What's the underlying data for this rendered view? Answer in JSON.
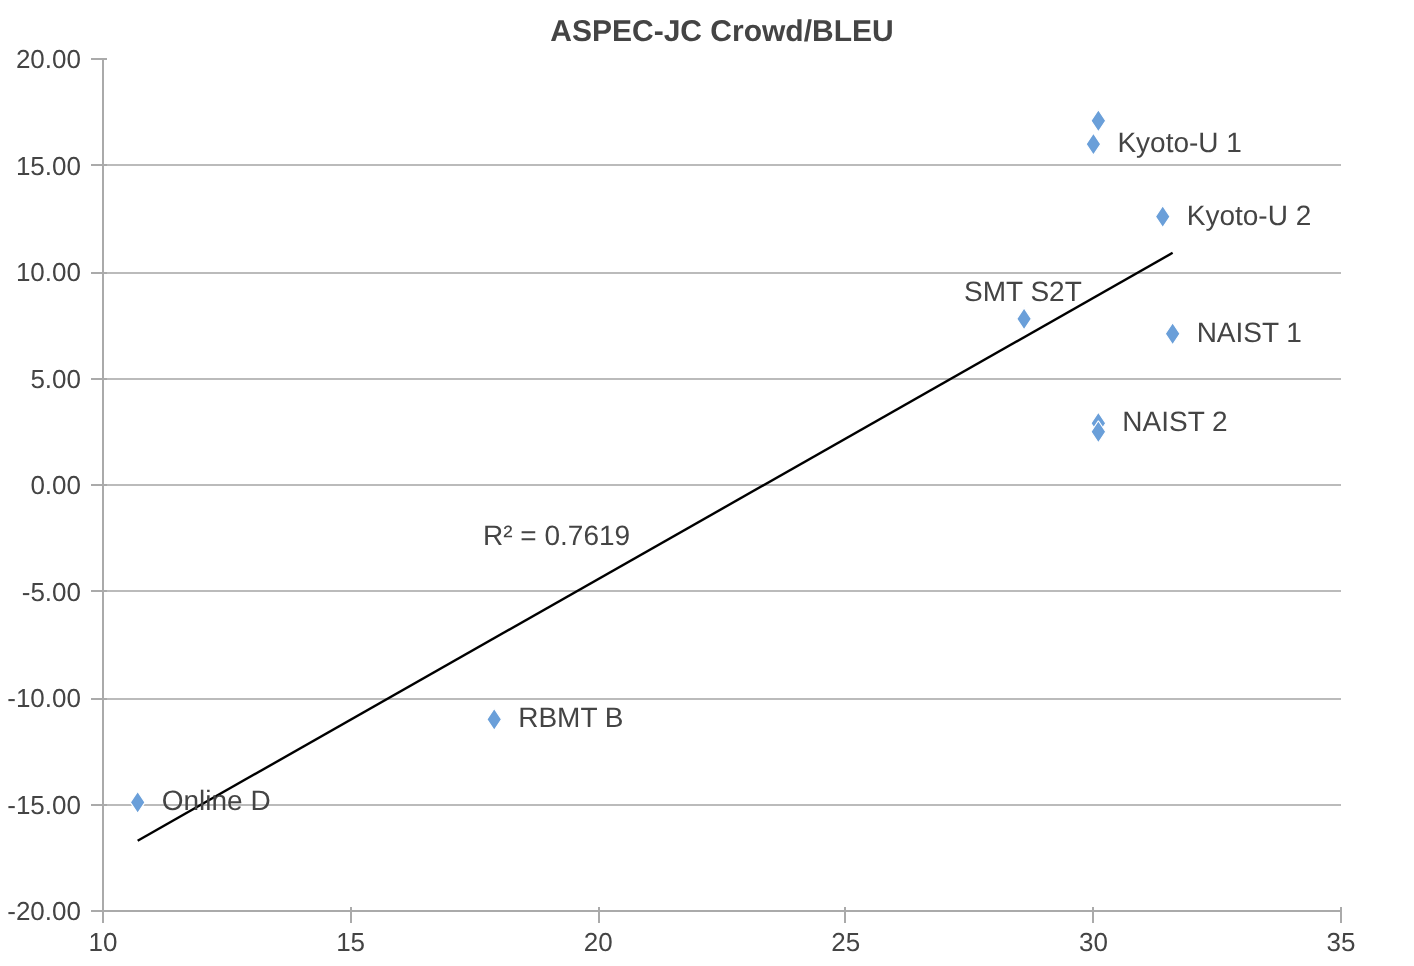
{
  "chart_data": {
    "type": "scatter",
    "title": "ASPEC-JC Crowd/BLEU",
    "series": [
      {
        "color": "#6a9fd9",
        "marker": "diamond",
        "x": [
          30.1,
          30.0,
          31.4,
          28.6,
          31.6,
          30.1,
          30.1,
          17.9,
          10.7
        ],
        "values": [
          17.1,
          16.0,
          12.6,
          7.8,
          7.1,
          2.9,
          2.5,
          -11.0,
          -14.9
        ]
      },
      {
        "type": "line",
        "color": "#000000",
        "marker": "none",
        "x": [
          10.7,
          31.6
        ],
        "values": [
          -16.7,
          10.9
        ]
      }
    ],
    "annotations": [
      {
        "text": "Kyoto-U 1",
        "x": 30.0,
        "y": 16.0
      },
      {
        "text": "Kyoto-U 2",
        "x": 31.4,
        "y": 12.6
      },
      {
        "text": "SMT S2T",
        "x": 28.6,
        "y": 7.8
      },
      {
        "text": "NAIST 1",
        "x": 31.6,
        "y": 7.1
      },
      {
        "text": "NAIST 2",
        "x": 30.1,
        "y": 2.9
      },
      {
        "text": "RBMT B",
        "x": 17.9,
        "y": -11.0
      },
      {
        "text": "Online D",
        "x": 10.7,
        "y": -14.9
      },
      "R² = 0.7619"
    ],
    "xlim": [
      10,
      35
    ],
    "xticks": [
      10,
      15,
      20,
      25,
      30,
      35
    ],
    "ylim": [
      -20,
      20
    ],
    "yticks": [
      {
        "value": -20,
        "label": "-20.00"
      },
      {
        "value": -15,
        "label": "-15.00"
      },
      {
        "value": -10,
        "label": "-10.00"
      },
      {
        "value": -5,
        "label": "-5.00"
      },
      {
        "value": 0,
        "label": "0.00"
      },
      {
        "value": 5,
        "label": "5.00"
      },
      {
        "value": 10,
        "label": "10.00"
      },
      {
        "value": 15,
        "label": "15.00"
      },
      {
        "value": 20,
        "label": "20.00"
      }
    ],
    "grid": "y"
  }
}
